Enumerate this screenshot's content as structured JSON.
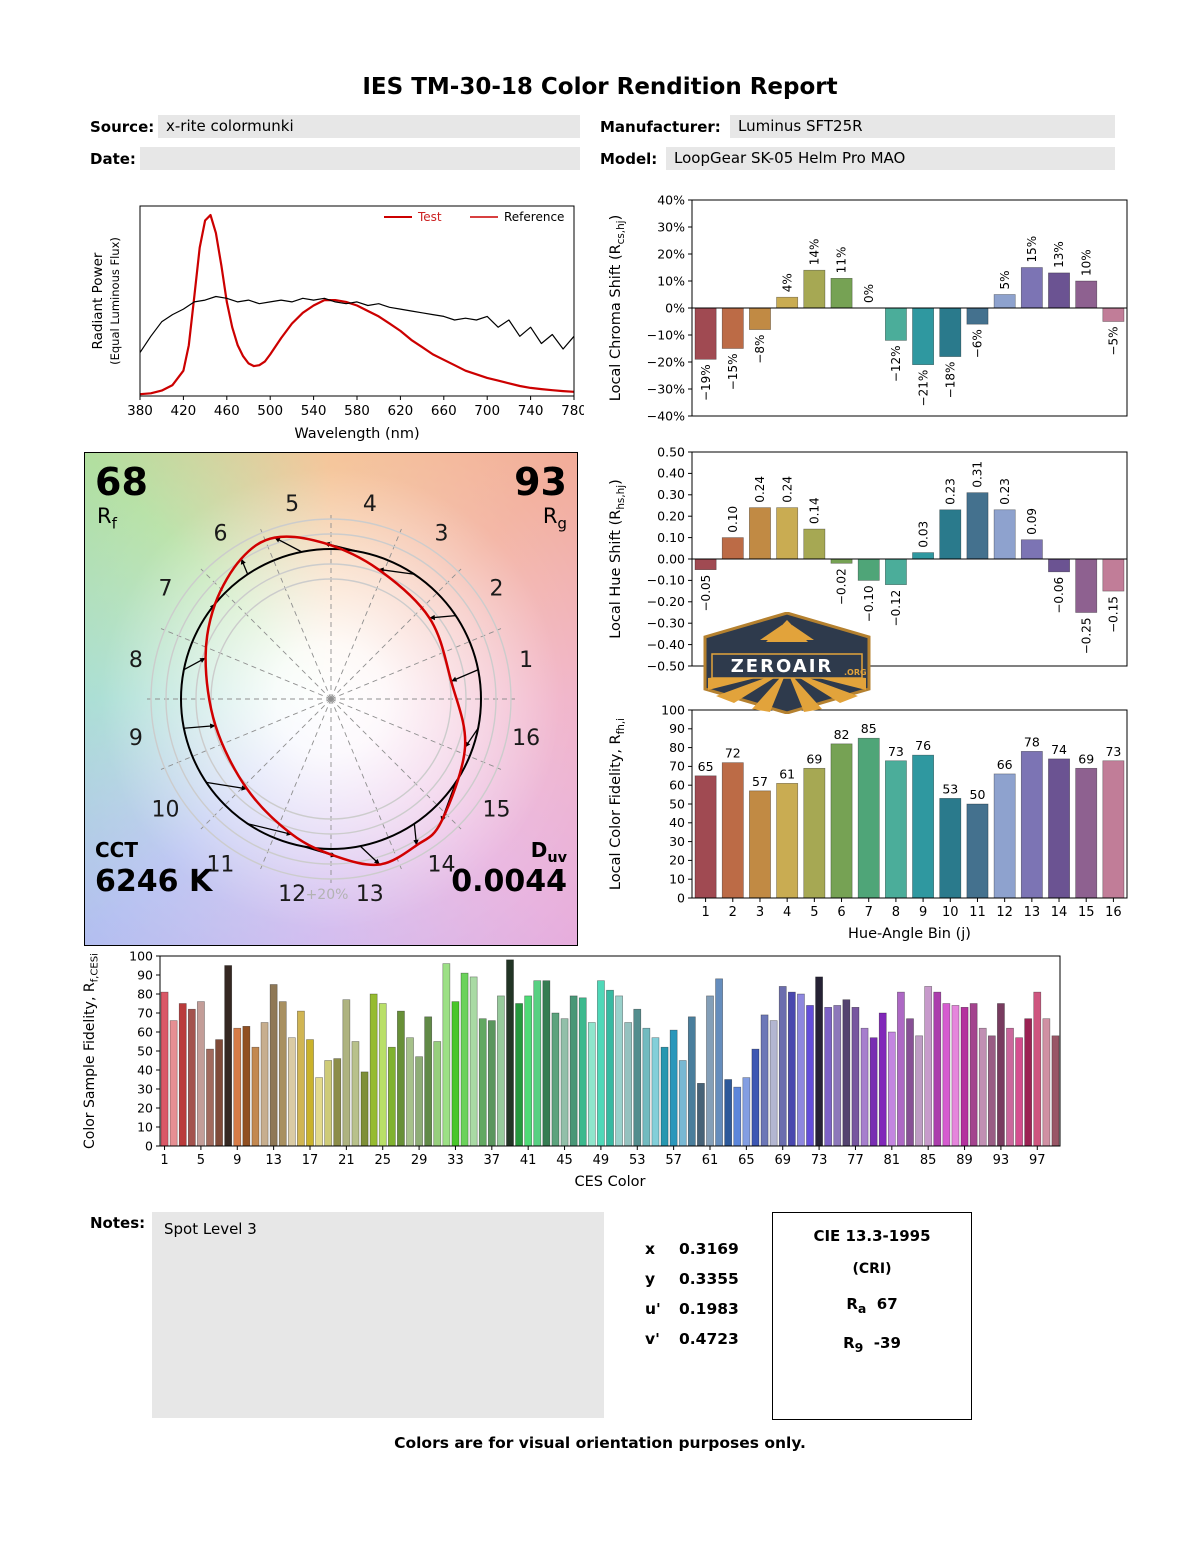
{
  "page": {
    "title": "IES TM-30-18 Color Rendition Report",
    "footer": "Colors are for visual orientation purposes only."
  },
  "header": {
    "source_label": "Source:",
    "source_value": "x-rite colormunki",
    "manufacturer_label": "Manufacturer:",
    "manufacturer_value": "Luminus SFT25R",
    "date_label": "Date:",
    "date_value": "",
    "model_label": "Model:",
    "model_value": "LoopGear SK-05 Helm Pro MAO"
  },
  "notes": {
    "label": "Notes:",
    "value": "Spot Level 3"
  },
  "chromaticity": {
    "rows": [
      {
        "label": "x",
        "value": "0.3169"
      },
      {
        "label": "y",
        "value": "0.3355"
      },
      {
        "label": "u'",
        "value": "0.1983"
      },
      {
        "label": "v'",
        "value": "0.4723"
      }
    ]
  },
  "cri_box": {
    "title": "CIE 13.3-1995",
    "subtitle": "(CRI)",
    "ra_base": "R",
    "ra_sub": "a",
    "ra_value": "67",
    "r9_base": "R",
    "r9_sub": "9",
    "r9_value": "-39"
  },
  "logo": {
    "name": "ZEROAIR",
    "org": ".ORG"
  },
  "bin_colors": [
    "#A04A52",
    "#BC6B46",
    "#C18A44",
    "#C9AC52",
    "#A6A853",
    "#76A254",
    "#4FA578",
    "#4BAD9A",
    "#2F98A0",
    "#2A7A8C",
    "#44718E",
    "#8EA2CE",
    "#7C74B4",
    "#6B5392",
    "#8E6190",
    "#C17D98"
  ],
  "chart_data": [
    {
      "id": "spd",
      "type": "line",
      "xlabel": "Wavelength (nm)",
      "ylabel": "Radiant Power",
      "ylabel2": "(Equal Luminous Flux)",
      "xlim": [
        380,
        780
      ],
      "ylim": [
        0,
        1.05
      ],
      "xticks": [
        380,
        420,
        460,
        500,
        540,
        580,
        620,
        660,
        700,
        740,
        780
      ],
      "legend": [
        {
          "label": "Test",
          "line_color": "#cc0000",
          "text_color": "#cc2222"
        },
        {
          "label": "Reference",
          "line_color": "#cc0000",
          "text_color": "#000000"
        }
      ],
      "series": [
        {
          "name": "Test",
          "color": "#cc0000",
          "width": 2.2,
          "x": [
            380,
            390,
            400,
            410,
            420,
            425,
            430,
            435,
            440,
            445,
            450,
            455,
            460,
            465,
            470,
            475,
            480,
            485,
            490,
            495,
            500,
            510,
            520,
            530,
            540,
            550,
            560,
            570,
            580,
            590,
            600,
            610,
            620,
            630,
            640,
            650,
            660,
            670,
            680,
            690,
            700,
            710,
            720,
            730,
            740,
            750,
            760,
            770,
            780
          ],
          "y": [
            0.01,
            0.015,
            0.03,
            0.06,
            0.14,
            0.28,
            0.55,
            0.82,
            0.97,
            1.0,
            0.9,
            0.72,
            0.52,
            0.38,
            0.28,
            0.22,
            0.18,
            0.165,
            0.17,
            0.19,
            0.23,
            0.32,
            0.4,
            0.46,
            0.5,
            0.53,
            0.53,
            0.52,
            0.5,
            0.47,
            0.44,
            0.4,
            0.36,
            0.31,
            0.27,
            0.23,
            0.2,
            0.17,
            0.14,
            0.12,
            0.1,
            0.085,
            0.07,
            0.055,
            0.045,
            0.038,
            0.032,
            0.027,
            0.023
          ]
        },
        {
          "name": "Reference",
          "color": "#000000",
          "width": 1.2,
          "x": [
            380,
            390,
            400,
            410,
            420,
            430,
            440,
            450,
            460,
            470,
            480,
            490,
            500,
            510,
            520,
            530,
            540,
            550,
            560,
            570,
            580,
            590,
            600,
            610,
            620,
            630,
            640,
            650,
            660,
            670,
            680,
            690,
            700,
            710,
            720,
            730,
            740,
            750,
            760,
            770,
            780
          ],
          "y": [
            0.24,
            0.33,
            0.41,
            0.45,
            0.48,
            0.52,
            0.53,
            0.55,
            0.54,
            0.52,
            0.53,
            0.51,
            0.52,
            0.53,
            0.52,
            0.54,
            0.53,
            0.54,
            0.52,
            0.51,
            0.52,
            0.5,
            0.51,
            0.49,
            0.48,
            0.47,
            0.46,
            0.45,
            0.44,
            0.42,
            0.43,
            0.42,
            0.44,
            0.38,
            0.42,
            0.33,
            0.38,
            0.29,
            0.34,
            0.26,
            0.33
          ]
        }
      ]
    },
    {
      "id": "local_chroma_shift",
      "type": "bar",
      "ylabel": "Local Chroma Shift (R_{cs,hj})",
      "ylim": [
        -40,
        40
      ],
      "ytick_step": 10,
      "ytick_suffix": "%",
      "colors": "bins",
      "label_style": "rotated",
      "values": [
        -19,
        -15,
        -8,
        4,
        14,
        11,
        0,
        -12,
        -21,
        -18,
        -6,
        5,
        15,
        13,
        10,
        -5
      ],
      "labels": [
        "−19%",
        "−15%",
        "−8%",
        "4%",
        "14%",
        "11%",
        "0%",
        "−12%",
        "−21%",
        "−18%",
        "−6%",
        "5%",
        "15%",
        "13%",
        "10%",
        "−5%"
      ]
    },
    {
      "id": "local_hue_shift",
      "type": "bar",
      "ylabel": "Local Hue Shift (R_{hs,hj})",
      "ylim": [
        -0.5,
        0.5
      ],
      "ytick_step": 0.1,
      "colors": "bins",
      "label_style": "rotated",
      "values": [
        -0.05,
        0.1,
        0.24,
        0.24,
        0.14,
        -0.02,
        -0.1,
        -0.12,
        0.03,
        0.23,
        0.31,
        0.23,
        0.09,
        -0.06,
        -0.25,
        -0.15
      ],
      "labels": [
        "−0.05",
        "0.10",
        "0.24",
        "0.24",
        "0.14",
        "−0.02",
        "−0.10",
        "−0.12",
        "0.03",
        "0.23",
        "0.31",
        "0.23",
        "0.09",
        "−0.06",
        "−0.25",
        "−0.15"
      ]
    },
    {
      "id": "local_color_fidelity",
      "type": "bar",
      "ylabel": "Local Color Fidelity, R_{fh,i}",
      "xlabel": "Hue-Angle Bin (j)",
      "ylim": [
        0,
        100
      ],
      "ytick_step": 10,
      "colors": "bins",
      "label_style": "top",
      "categories": [
        1,
        2,
        3,
        4,
        5,
        6,
        7,
        8,
        9,
        10,
        11,
        12,
        13,
        14,
        15,
        16
      ],
      "values": [
        65,
        72,
        57,
        61,
        69,
        82,
        85,
        73,
        76,
        53,
        50,
        66,
        78,
        74,
        69,
        73
      ],
      "labels": [
        "65",
        "72",
        "57",
        "61",
        "69",
        "82",
        "85",
        "73",
        "76",
        "53",
        "50",
        "66",
        "78",
        "74",
        "69",
        "73"
      ]
    },
    {
      "id": "ces_fidelity",
      "type": "bar",
      "ylabel": "Color Sample Fidelity, R_{f,CESi}",
      "xlabel": "CES Color",
      "ylim": [
        0,
        100
      ],
      "ytick_step": 10,
      "colors": "ces",
      "label_style": "none",
      "dark_indices": [
        7,
        38,
        72
      ],
      "xticks": [
        1,
        5,
        9,
        13,
        17,
        21,
        25,
        29,
        33,
        37,
        41,
        45,
        49,
        53,
        57,
        61,
        65,
        69,
        73,
        77,
        81,
        85,
        89,
        93,
        97
      ],
      "values": [
        81,
        66,
        75,
        72,
        76,
        51,
        56,
        95,
        62,
        63,
        52,
        65,
        85,
        76,
        57,
        71,
        56,
        36,
        45,
        46,
        77,
        55,
        39,
        80,
        75,
        52,
        71,
        57,
        47,
        68,
        55,
        96,
        76,
        91,
        89,
        67,
        66,
        79,
        98,
        75,
        79,
        87,
        87,
        70,
        67,
        79,
        78,
        65,
        87,
        82,
        79,
        65,
        72,
        62,
        57,
        52,
        61,
        45,
        68,
        33,
        79,
        88,
        35,
        31,
        36,
        51,
        69,
        66,
        84,
        81,
        80,
        74,
        89,
        73,
        74,
        77,
        73,
        62,
        57,
        70,
        60,
        81,
        67,
        58,
        84,
        81,
        75,
        74,
        73,
        75,
        62,
        58,
        75,
        62,
        57,
        67,
        81,
        67,
        58
      ]
    },
    {
      "id": "color_vector_graphic",
      "type": "polar_vector",
      "rf_value": "68",
      "rf_label": "R_{f}",
      "rg_value": "93",
      "rg_label": "R_{g}",
      "cct_label": "CCT",
      "cct_value": "6246 K",
      "duv_label": "D_{uv}",
      "duv_value": "0.0044",
      "ring_label": "+20%",
      "bins": [
        1,
        2,
        3,
        4,
        5,
        6,
        7,
        8,
        9,
        10,
        11,
        12,
        13,
        14,
        15,
        16
      ],
      "chroma_shift_pct": [
        -19,
        -15,
        -8,
        4,
        14,
        11,
        0,
        -12,
        -21,
        -18,
        -6,
        5,
        15,
        13,
        10,
        -5
      ],
      "hue_shift_rad": [
        -0.05,
        0.1,
        0.24,
        0.24,
        0.14,
        -0.02,
        -0.1,
        -0.12,
        0.03,
        0.23,
        0.31,
        0.23,
        0.09,
        -0.06,
        -0.25,
        -0.15
      ]
    }
  ]
}
